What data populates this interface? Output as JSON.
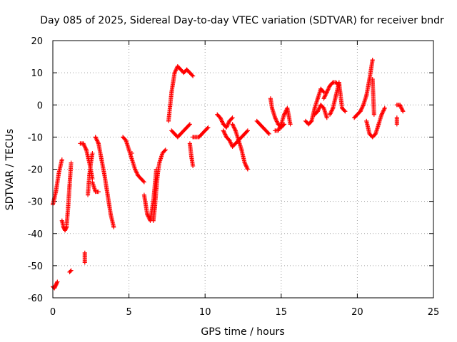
{
  "chart_data": {
    "type": "scatter",
    "title": "Day 085 of 2025, Sidereal Day-to-day VTEC variation (SDTVAR) for receiver bndr",
    "xlabel": "GPS time / hours",
    "ylabel": "SDTVAR / TECUs",
    "xlim": [
      0,
      25
    ],
    "ylim": [
      -60,
      20
    ],
    "xticks": [
      0,
      5,
      10,
      15,
      20,
      25
    ],
    "yticks": [
      -60,
      -50,
      -40,
      -30,
      -20,
      -10,
      0,
      10,
      20
    ],
    "grid": true,
    "marker": "+",
    "color": "#ff0000",
    "series": [
      {
        "name": "s01",
        "x": [
          0.0,
          0.1,
          0.2,
          0.3
        ],
        "y": [
          -56.5,
          -57,
          -56,
          -55
        ]
      },
      {
        "name": "s02",
        "x": [
          0.0,
          0.1,
          0.2,
          0.3,
          0.4,
          0.5,
          0.6
        ],
        "y": [
          -31,
          -29,
          -27,
          -24,
          -21,
          -19,
          -17
        ]
      },
      {
        "name": "s03",
        "x": [
          0.6,
          0.7,
          0.8,
          0.9,
          1.0,
          1.1,
          1.2
        ],
        "y": [
          -36,
          -38,
          -39,
          -38,
          -32,
          -25,
          -18
        ]
      },
      {
        "name": "s04",
        "x": [
          1.1,
          1.2
        ],
        "y": [
          -52,
          -51.5
        ]
      },
      {
        "name": "s05",
        "x": [
          2.1,
          2.1,
          2.1
        ],
        "y": [
          -49,
          -47,
          -46
        ]
      },
      {
        "name": "s06",
        "x": [
          1.8,
          2.0,
          2.2,
          2.4,
          2.6
        ],
        "y": [
          -12,
          -12,
          -14,
          -18,
          -23
        ]
      },
      {
        "name": "s07",
        "x": [
          2.3,
          2.4,
          2.5,
          2.6
        ],
        "y": [
          -28,
          -22,
          -18,
          -15
        ]
      },
      {
        "name": "s08",
        "x": [
          2.6,
          2.8,
          3.0
        ],
        "y": [
          -24,
          -27,
          -27
        ]
      },
      {
        "name": "s09",
        "x": [
          2.8,
          3.0,
          3.2,
          3.4,
          3.6,
          3.8,
          4.0
        ],
        "y": [
          -10,
          -12,
          -17,
          -22,
          -28,
          -34,
          -38
        ]
      },
      {
        "name": "s10",
        "x": [
          4.6,
          4.8,
          5.0,
          5.2,
          5.4,
          5.6,
          5.8,
          6.0
        ],
        "y": [
          -10,
          -11,
          -14,
          -17,
          -20,
          -22,
          -23,
          -24
        ]
      },
      {
        "name": "s11",
        "x": [
          5.2
        ],
        "y": [
          -15
        ]
      },
      {
        "name": "s12",
        "x": [
          6.0,
          6.2,
          6.4,
          6.6,
          6.8
        ],
        "y": [
          -28,
          -34,
          -36,
          -30,
          -20
        ]
      },
      {
        "name": "s13",
        "x": [
          6.6,
          6.7,
          6.8,
          6.9,
          7.0,
          7.2,
          7.4
        ],
        "y": [
          -36,
          -32,
          -26,
          -21,
          -18,
          -15,
          -14
        ]
      },
      {
        "name": "s14",
        "x": [
          7.6,
          7.8,
          8.0,
          8.2,
          8.4,
          8.6,
          8.8,
          9.0,
          9.2
        ],
        "y": [
          -5,
          4,
          10,
          12,
          11,
          10,
          11,
          10,
          9
        ]
      },
      {
        "name": "s15",
        "x": [
          7.8,
          8.0,
          8.2,
          8.4,
          8.6,
          8.8,
          9.0
        ],
        "y": [
          -8,
          -9,
          -10,
          -9,
          -8,
          -7,
          -6
        ]
      },
      {
        "name": "s16",
        "x": [
          9.0,
          9.1,
          9.2
        ],
        "y": [
          -12,
          -16,
          -19
        ]
      },
      {
        "name": "s17",
        "x": [
          9.2,
          9.4,
          9.6,
          9.8,
          10.0,
          10.2
        ],
        "y": [
          -10,
          -10,
          -10,
          -9,
          -8,
          -7
        ]
      },
      {
        "name": "s18",
        "x": [
          10.8,
          11.0,
          11.2,
          11.4,
          11.6,
          11.8
        ],
        "y": [
          -3,
          -4,
          -6,
          -7,
          -5,
          -4
        ]
      },
      {
        "name": "s19",
        "x": [
          11.2,
          11.4,
          11.6,
          11.8,
          12.0,
          12.2,
          12.4,
          12.6,
          12.8
        ],
        "y": [
          -8,
          -10,
          -11,
          -13,
          -12,
          -11,
          -10,
          -9,
          -8
        ]
      },
      {
        "name": "s20",
        "x": [
          11.8,
          12.0,
          12.2,
          12.4,
          12.6,
          12.8
        ],
        "y": [
          -6,
          -8,
          -11,
          -14,
          -18,
          -20
        ]
      },
      {
        "name": "s21",
        "x": [
          13.4,
          13.6,
          13.8,
          14.0,
          14.2
        ],
        "y": [
          -5,
          -6,
          -7,
          -8,
          -9
        ]
      },
      {
        "name": "s22",
        "x": [
          14.3,
          14.4,
          14.6,
          14.8,
          15.0,
          15.2
        ],
        "y": [
          2,
          -1,
          -4,
          -6,
          -7,
          -6
        ]
      },
      {
        "name": "s23",
        "x": [
          14.6,
          14.8,
          15.0,
          15.2,
          15.4,
          15.6
        ],
        "y": [
          -8,
          -8,
          -6,
          -3,
          -1,
          -6
        ]
      },
      {
        "name": "s24",
        "x": [
          16.6,
          16.8,
          17.0,
          17.2,
          17.4,
          17.6,
          17.8
        ],
        "y": [
          -5,
          -6,
          -5,
          -1,
          2,
          5,
          4
        ]
      },
      {
        "name": "s25",
        "x": [
          17.2,
          17.4,
          17.6,
          17.8,
          18.0
        ],
        "y": [
          -3,
          -2,
          0,
          -1,
          -4
        ]
      },
      {
        "name": "s26",
        "x": [
          17.8,
          18.0,
          18.2,
          18.4,
          18.6,
          18.8
        ],
        "y": [
          2,
          4,
          6,
          7,
          7,
          6
        ]
      },
      {
        "name": "s27",
        "x": [
          18.2,
          18.4,
          18.6,
          18.8,
          19.0,
          19.2
        ],
        "y": [
          -3,
          -1,
          3,
          7,
          -1,
          -2
        ]
      },
      {
        "name": "s28",
        "x": [
          19.8,
          20.0,
          20.2,
          20.4,
          20.6,
          20.8,
          21.0
        ],
        "y": [
          -4,
          -3,
          -2,
          0,
          3,
          8,
          14
        ]
      },
      {
        "name": "s29",
        "x": [
          20.6,
          20.8,
          21.0,
          21.2,
          21.4,
          21.6,
          21.8
        ],
        "y": [
          -5,
          -9,
          -10,
          -9,
          -6,
          -3,
          -1
        ]
      },
      {
        "name": "s30",
        "x": [
          21.0,
          21.1
        ],
        "y": [
          8,
          -3
        ]
      },
      {
        "name": "s31",
        "x": [
          22.6,
          22.8,
          23.0
        ],
        "y": [
          0,
          0,
          -2
        ]
      },
      {
        "name": "s32",
        "x": [
          22.6,
          22.6,
          22.6
        ],
        "y": [
          -4,
          -5,
          -6
        ]
      }
    ]
  }
}
